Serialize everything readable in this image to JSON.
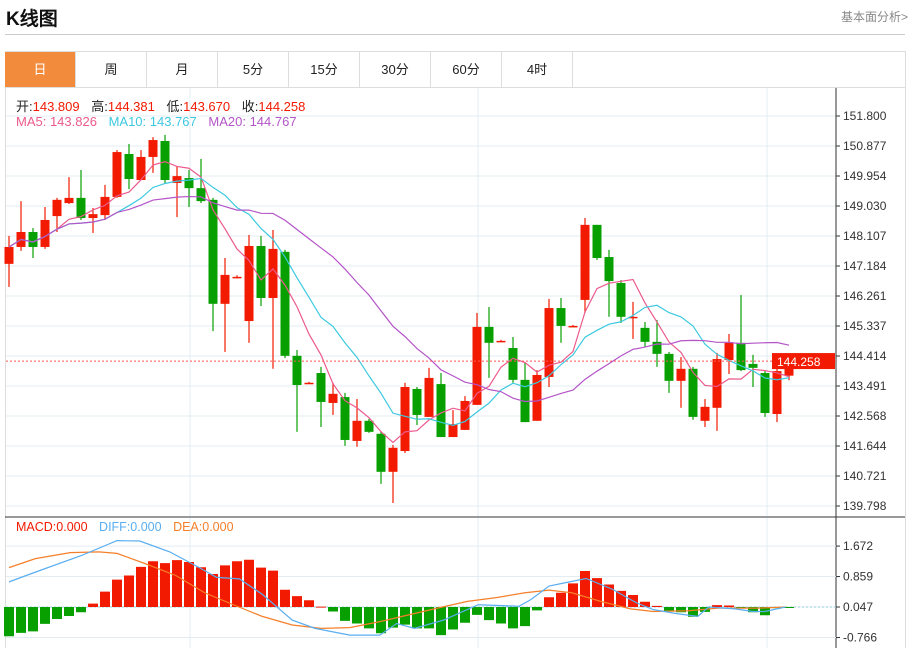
{
  "header": {
    "title": "K线图",
    "link": "基本面分析>"
  },
  "tabs": [
    {
      "label": "日",
      "active": true
    },
    {
      "label": "周"
    },
    {
      "label": "月"
    },
    {
      "label": "5分"
    },
    {
      "label": "15分"
    },
    {
      "label": "30分"
    },
    {
      "label": "60分"
    },
    {
      "label": "4时"
    }
  ],
  "ohlc": {
    "open_label": "开:",
    "open": "143.809",
    "high_label": "高:",
    "high": "144.381",
    "low_label": "低:",
    "low": "143.670",
    "close_label": "收:",
    "close": "144.258"
  },
  "ma": {
    "ma5": "MA5: 143.826",
    "ma10": "MA10: 143.767",
    "ma20": "MA20: 144.767"
  },
  "macd_info": {
    "macd": "MACD:0.000",
    "diff": "DIFF:0.000",
    "dea": "DEA:0.000"
  },
  "colors": {
    "up": "#f21a00",
    "down": "#07a000",
    "ma5": "#ec5a8d",
    "ma10": "#3cc9e0",
    "ma20": "#b455c8",
    "diff": "#5aaef0",
    "dea": "#f57f29",
    "accent": "#f28c3c"
  },
  "chart_data": [
    {
      "type": "candlestick",
      "yticks": [
        "151.800",
        "150.877",
        "149.954",
        "149.030",
        "148.107",
        "147.184",
        "146.261",
        "145.337",
        "144.414",
        "143.491",
        "142.568",
        "141.644",
        "140.721",
        "139.798"
      ],
      "ylim": [
        139.798,
        151.8
      ],
      "last_price": "144.258",
      "candles": [
        [
          147.25,
          147.77,
          148.11,
          146.54
        ],
        [
          147.77,
          148.23,
          149.18,
          147.65
        ],
        [
          148.23,
          147.77,
          148.35,
          147.43
        ],
        [
          147.77,
          148.6,
          149.0,
          147.71
        ],
        [
          148.72,
          149.22,
          149.28,
          148.23
        ],
        [
          149.12,
          149.28,
          149.92,
          149.09
        ],
        [
          149.28,
          148.66,
          150.14,
          148.6
        ],
        [
          148.66,
          148.78,
          148.97,
          148.2
        ],
        [
          148.75,
          149.31,
          149.68,
          148.6
        ],
        [
          149.31,
          150.69,
          150.75,
          149.28
        ],
        [
          150.63,
          149.86,
          150.94,
          149.55
        ],
        [
          149.83,
          150.54,
          150.75,
          149.83
        ],
        [
          150.54,
          151.06,
          151.15,
          150.05
        ],
        [
          151.03,
          149.83,
          151.22,
          149.71
        ],
        [
          149.74,
          149.95,
          150.26,
          148.69
        ],
        [
          149.89,
          149.58,
          150.14,
          149.0
        ],
        [
          149.58,
          149.18,
          150.48,
          149.12
        ],
        [
          149.22,
          146.02,
          149.28,
          145.18
        ],
        [
          146.02,
          146.91,
          147.43,
          144.54
        ],
        [
          146.85,
          146.85,
          146.9,
          146.8
        ],
        [
          145.49,
          147.8,
          148.14,
          144.82
        ],
        [
          147.8,
          146.2,
          148.11,
          145.95
        ],
        [
          146.2,
          147.71,
          148.29,
          144.02
        ],
        [
          147.62,
          144.42,
          147.68,
          144.35
        ],
        [
          144.42,
          143.52,
          144.6,
          142.08
        ],
        [
          143.59,
          143.59,
          143.62,
          143.56
        ],
        [
          143.89,
          143.0,
          144.08,
          142.23
        ],
        [
          142.97,
          143.25,
          143.59,
          142.6
        ],
        [
          143.15,
          141.83,
          143.28,
          141.65
        ],
        [
          141.8,
          142.42,
          143.09,
          141.62
        ],
        [
          142.42,
          142.08,
          142.48,
          142.05
        ],
        [
          142.02,
          140.85,
          142.08,
          140.48
        ],
        [
          140.85,
          141.59,
          141.68,
          139.89
        ],
        [
          141.49,
          143.46,
          143.59,
          141.43
        ],
        [
          143.4,
          142.6,
          143.46,
          142.29
        ],
        [
          142.54,
          143.74,
          144.05,
          142.54
        ],
        [
          143.55,
          141.92,
          143.89,
          141.92
        ],
        [
          141.92,
          142.32,
          142.75,
          141.92
        ],
        [
          142.14,
          143.03,
          143.18,
          142.14
        ],
        [
          142.91,
          145.31,
          145.74,
          142.91
        ],
        [
          145.31,
          144.82,
          145.92,
          143.74
        ],
        [
          144.88,
          144.88,
          144.91,
          144.85
        ],
        [
          144.66,
          143.68,
          145.0,
          143.59
        ],
        [
          143.68,
          142.38,
          144.23,
          142.38
        ],
        [
          142.42,
          143.83,
          143.98,
          142.42
        ],
        [
          143.77,
          145.89,
          146.17,
          143.46
        ],
        [
          145.89,
          145.34,
          146.2,
          144.82
        ],
        [
          145.34,
          145.34,
          145.37,
          145.31
        ],
        [
          146.14,
          148.45,
          148.66,
          145.74
        ],
        [
          148.45,
          147.43,
          148.45,
          147.37
        ],
        [
          147.46,
          146.72,
          147.68,
          145.62
        ],
        [
          146.66,
          145.62,
          146.75,
          145.43
        ],
        [
          145.62,
          145.62,
          146.08,
          144.94
        ],
        [
          145.28,
          144.85,
          145.46,
          144.69
        ],
        [
          144.85,
          144.48,
          145.52,
          144.08
        ],
        [
          144.48,
          143.65,
          144.54,
          143.28
        ],
        [
          143.65,
          144.02,
          144.38,
          142.82
        ],
        [
          144.02,
          142.54,
          144.08,
          142.45
        ],
        [
          142.42,
          142.85,
          143.09,
          142.23
        ],
        [
          142.82,
          144.32,
          144.51,
          142.11
        ],
        [
          144.29,
          144.82,
          145.09,
          143.86
        ],
        [
          144.82,
          143.98,
          146.29,
          143.95
        ],
        [
          144.17,
          144.05,
          144.45,
          143.46
        ],
        [
          143.89,
          142.66,
          143.98,
          142.54
        ],
        [
          142.63,
          143.95,
          144.11,
          142.38
        ],
        [
          143.809,
          144.258,
          144.381,
          143.67
        ]
      ]
    },
    {
      "type": "macd",
      "yticks": [
        "1.672",
        "0.859",
        "0.047",
        "-0.766"
      ],
      "hist": [
        -0.78,
        -0.69,
        -0.65,
        -0.45,
        -0.32,
        -0.24,
        -0.14,
        0.09,
        0.41,
        0.73,
        0.84,
        1.07,
        1.22,
        1.17,
        1.25,
        1.2,
        1.06,
        0.88,
        1.11,
        1.22,
        1.26,
        1.05,
        0.97,
        0.46,
        0.29,
        0.18,
        0.01,
        -0.12,
        -0.37,
        -0.44,
        -0.57,
        -0.7,
        -0.55,
        -0.47,
        -0.57,
        -0.57,
        -0.75,
        -0.6,
        -0.42,
        -0.21,
        -0.35,
        -0.44,
        -0.57,
        -0.51,
        -0.09,
        0.26,
        0.38,
        0.63,
        0.96,
        0.77,
        0.6,
        0.43,
        0.32,
        0.14,
        0.03,
        -0.12,
        -0.14,
        -0.26,
        -0.13,
        0.05,
        0.04,
        -0.04,
        -0.14,
        -0.22,
        -0.03,
        -0.01
      ],
      "diff": [
        [
          0,
          0.67
        ],
        [
          2.2,
          0.93
        ],
        [
          6.1,
          1.38
        ],
        [
          9,
          1.77
        ],
        [
          10.9,
          1.76
        ],
        [
          13.4,
          1.47
        ],
        [
          15.8,
          1.06
        ],
        [
          17.3,
          0.79
        ],
        [
          19.2,
          0.75
        ],
        [
          21.1,
          0.34
        ],
        [
          23.6,
          -0.35
        ],
        [
          25.5,
          -0.57
        ],
        [
          28.4,
          -0.75
        ],
        [
          30.9,
          -0.75
        ],
        [
          32.3,
          -0.44
        ],
        [
          33.8,
          -0.57
        ],
        [
          36.2,
          -0.35
        ],
        [
          39.1,
          0.06
        ],
        [
          42.5,
          0.02
        ],
        [
          43.5,
          0.2
        ],
        [
          45,
          0.56
        ],
        [
          46.4,
          0.65
        ],
        [
          48.1,
          0.76
        ],
        [
          50.3,
          0.47
        ],
        [
          52.3,
          0.11
        ],
        [
          53.7,
          -0.07
        ],
        [
          55.7,
          -0.18
        ],
        [
          57.4,
          -0.25
        ],
        [
          58.3,
          0
        ],
        [
          60.5,
          -0.05
        ],
        [
          62,
          -0.12
        ],
        [
          63,
          -0.12
        ],
        [
          64.7,
          0
        ]
      ],
      "dea": [
        [
          0,
          1.05
        ],
        [
          2.2,
          1.29
        ],
        [
          5.1,
          1.45
        ],
        [
          7.5,
          1.47
        ],
        [
          9,
          1.43
        ],
        [
          11.4,
          1.15
        ],
        [
          13.9,
          0.84
        ],
        [
          16.3,
          0.38
        ],
        [
          18.7,
          0.06
        ],
        [
          21.1,
          -0.25
        ],
        [
          23.6,
          -0.48
        ],
        [
          26,
          -0.57
        ],
        [
          28.4,
          -0.55
        ],
        [
          30.9,
          -0.39
        ],
        [
          33.3,
          -0.21
        ],
        [
          35.7,
          -0.03
        ],
        [
          38.2,
          0.15
        ],
        [
          40.6,
          0.25
        ],
        [
          43,
          0.38
        ],
        [
          45,
          0.45
        ],
        [
          46.9,
          0.38
        ],
        [
          49.3,
          0.15
        ],
        [
          51.8,
          -0.05
        ],
        [
          53.7,
          -0.12
        ],
        [
          56.6,
          -0.1
        ],
        [
          59.1,
          -0.03
        ],
        [
          62.5,
          -0.03
        ],
        [
          64.7,
          0
        ]
      ]
    }
  ]
}
